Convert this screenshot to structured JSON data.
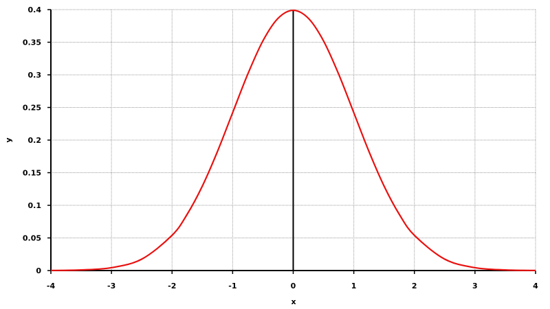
{
  "chart_data": {
    "type": "line",
    "xlabel": "x",
    "ylabel": "y",
    "xlim": [
      -4,
      4
    ],
    "ylim": [
      0,
      0.4
    ],
    "x_ticks": [
      "-4",
      "-3",
      "-2",
      "-1",
      "0",
      "1",
      "2",
      "3",
      "4"
    ],
    "y_ticks": [
      "0",
      "0.05",
      "0.1",
      "0.15",
      "0.2",
      "0.25",
      "0.3",
      "0.35",
      "0.4"
    ],
    "grid": true,
    "series": [
      {
        "color": "#e8110f",
        "x": [
          -4,
          -3.5,
          -3,
          -2.5,
          -2,
          -1.75,
          -1.5,
          -1.25,
          -1,
          -0.75,
          -0.5,
          -0.25,
          0,
          0.25,
          0.5,
          0.75,
          1,
          1.25,
          1.5,
          1.75,
          2,
          2.5,
          3,
          3.5,
          4
        ],
        "y": [
          0.0001,
          0.0009,
          0.0044,
          0.0175,
          0.054,
          0.0863,
          0.1295,
          0.1826,
          0.242,
          0.3011,
          0.3521,
          0.3867,
          0.3989,
          0.3867,
          0.3521,
          0.3011,
          0.242,
          0.1826,
          0.1295,
          0.0863,
          0.054,
          0.0175,
          0.0044,
          0.0009,
          0.0001
        ]
      }
    ]
  }
}
